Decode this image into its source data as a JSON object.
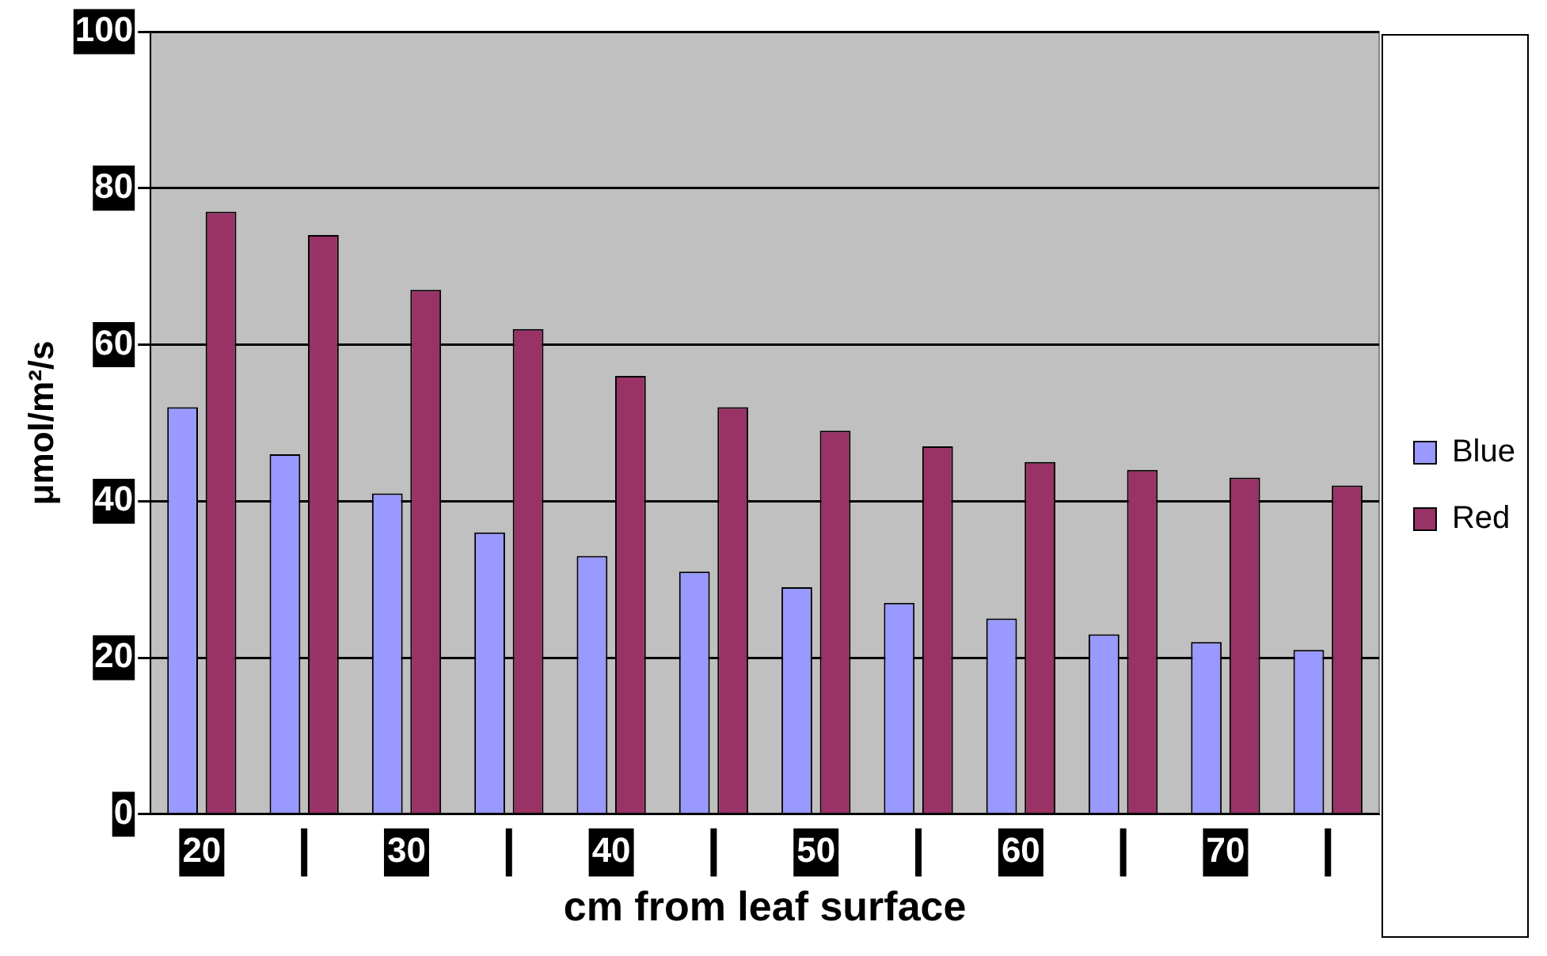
{
  "chart_data": {
    "type": "bar",
    "xlabel": "cm from leaf surface",
    "ylabel": "μmol/m²/s",
    "categories": [
      "20",
      null,
      "30",
      null,
      "40",
      null,
      "50",
      null,
      "60",
      null,
      "70",
      null
    ],
    "series": [
      {
        "name": "Blue",
        "color": "#9999ff",
        "values": [
          52,
          46,
          41,
          36,
          33,
          31,
          29,
          27,
          25,
          23,
          22,
          21
        ]
      },
      {
        "name": "Red",
        "color": "#993366",
        "values": [
          77,
          74,
          67,
          62,
          56,
          52,
          49,
          47,
          45,
          44,
          43,
          42
        ]
      }
    ],
    "ylim": [
      0,
      100
    ],
    "yticks": [
      0,
      20,
      40,
      60,
      80,
      100
    ],
    "grid": "y",
    "legend": "right"
  }
}
